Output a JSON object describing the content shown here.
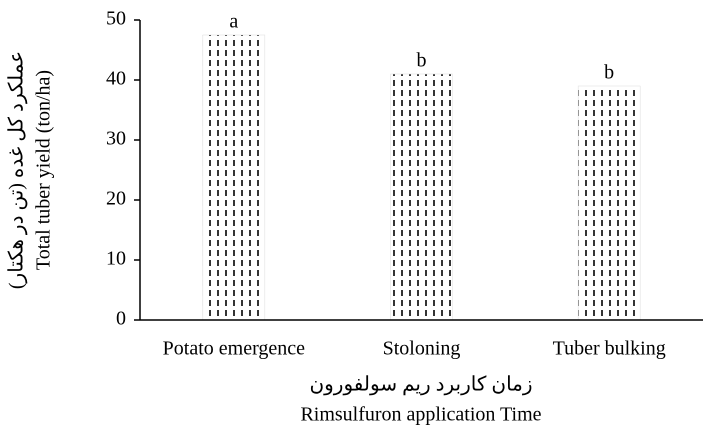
{
  "chart_data": {
    "type": "bar",
    "ylabel": [
      "عملکرد کل غده (تن در هکتار)",
      "Total tuber yield (ton/ha)"
    ],
    "xlabel": [
      "زمان کاربرد ریم سولفورون",
      "Rimsulfuron application Time"
    ],
    "categories": [
      "Potato emergence",
      "Stoloning",
      "Tuber bulking"
    ],
    "values": [
      47.5,
      41,
      39
    ],
    "annotations": [
      "a",
      "b",
      "b"
    ],
    "color": "#000000",
    "ylim": [
      0,
      50
    ],
    "yticks": [
      0,
      10,
      20,
      30,
      40,
      50
    ],
    "grid": false
  }
}
